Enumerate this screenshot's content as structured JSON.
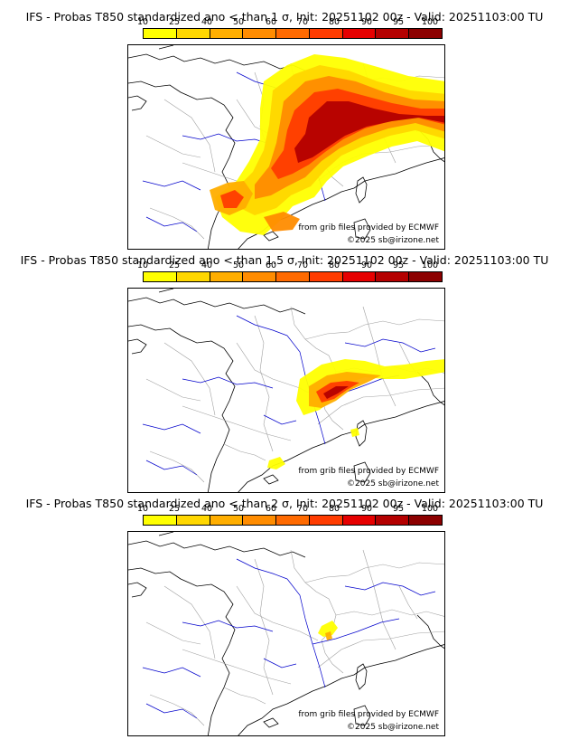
{
  "legend": {
    "ticks": [
      "10",
      "25",
      "40",
      "50",
      "60",
      "70",
      "80",
      "90",
      "95",
      "100"
    ],
    "colors": [
      "#ffff00",
      "#ffd700",
      "#ffae00",
      "#ff8c00",
      "#ff6a00",
      "#ff3c00",
      "#e60000",
      "#b40000",
      "#8c0000"
    ]
  },
  "map_colors": {
    "land": "#ffffff",
    "sea_coast": "#000000",
    "borders": "#a0a0a0",
    "rivers": "#0000cc"
  },
  "panels": [
    {
      "title": "IFS - Probas T850  standardized ano < than 1 σ, Init: 20251102 00z - Valid: 20251103:00 TU",
      "threshold_sigma": "1",
      "credit_source": "from grib files provided by ECMWF",
      "credit_copyright": "©2025 sb@irizone.net"
    },
    {
      "title": "IFS - Probas T850  standardized ano < than 1.5 σ, Init: 20251102 00z - Valid: 20251103:00 TU",
      "threshold_sigma": "1.5",
      "credit_source": "from grib files provided by ECMWF",
      "credit_copyright": "©2025 sb@irizone.net"
    },
    {
      "title": "IFS - Probas T850  standardized ano < than 2 σ, Init: 20251102 00z - Valid: 20251103:00 TU",
      "threshold_sigma": "2",
      "credit_source": "from grib files provided by ECMWF",
      "credit_copyright": "©2025 sb@irizone.net"
    }
  ]
}
